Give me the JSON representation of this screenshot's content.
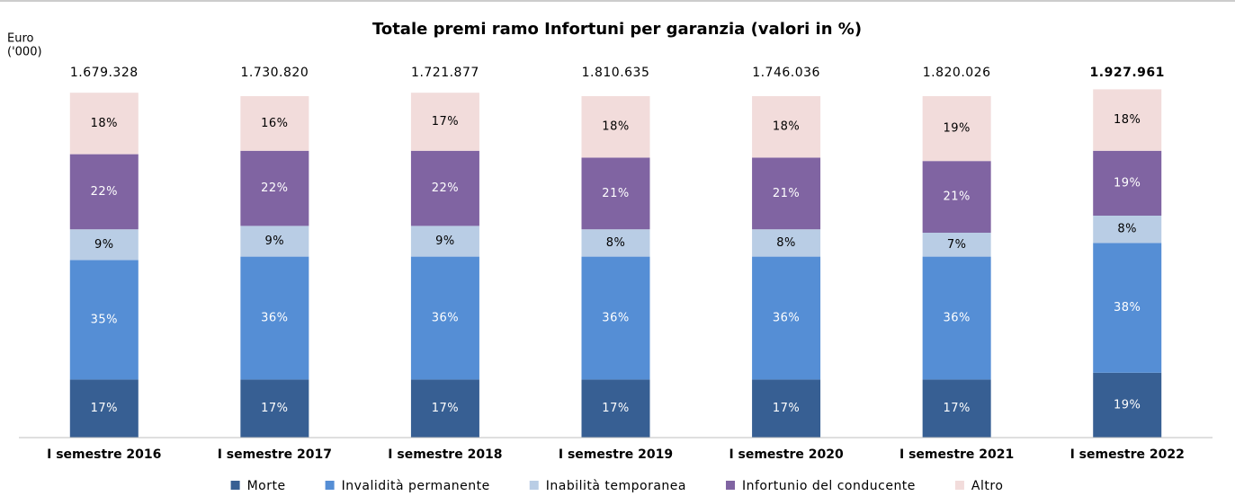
{
  "chart_data": {
    "type": "stacked_bar",
    "title": "Totale premi ramo Infortuni per garanzia (valori in %)",
    "unit_label": [
      "Euro",
      "('000)"
    ],
    "categories": [
      "I semestre 2016",
      "I semestre 2017",
      "I semestre 2018",
      "I semestre 2019",
      "I semestre 2020",
      "I semestre 2021",
      "I semestre 2022"
    ],
    "totals": {
      "values": [
        1679328,
        1730820,
        1721877,
        1810635,
        1746036,
        1820026,
        1927961
      ],
      "value_labels": [
        "1.679.328",
        "1.730.820",
        "1.721.877",
        "1.810.635",
        "1.746.036",
        "1.820.026",
        "1.927.961"
      ]
    },
    "series": [
      {
        "name": "Morte",
        "color": "#375f93",
        "values": [
          17,
          17,
          17,
          17,
          17,
          17,
          19
        ],
        "value_labels": [
          "17%",
          "17%",
          "17%",
          "17%",
          "17%",
          "17%",
          "19%"
        ]
      },
      {
        "name": "Invalidità permanente",
        "color": "#558ed5",
        "values": [
          35,
          36,
          36,
          36,
          36,
          36,
          38
        ],
        "value_labels": [
          "35%",
          "36%",
          "36%",
          "36%",
          "36%",
          "36%",
          "38%"
        ]
      },
      {
        "name": "Inabilità temporanea",
        "color": "#b9cde5",
        "values": [
          9,
          9,
          9,
          8,
          8,
          7,
          8
        ],
        "value_labels": [
          "9%",
          "9%",
          "9%",
          "8%",
          "8%",
          "7%",
          "8%"
        ]
      },
      {
        "name": "Infortunio del conducente",
        "color": "#8064a2",
        "values": [
          22,
          22,
          22,
          21,
          21,
          21,
          19
        ],
        "value_labels": [
          "22%",
          "22%",
          "22%",
          "21%",
          "21%",
          "21%",
          "19%"
        ]
      },
      {
        "name": "Altro",
        "color": "#f2dcdb",
        "values": [
          18,
          16,
          17,
          18,
          18,
          19,
          18
        ],
        "value_labels": [
          "18%",
          "16%",
          "17%",
          "18%",
          "18%",
          "19%",
          "18%"
        ]
      }
    ],
    "ylim": [
      0,
      100
    ],
    "legend": "bottom"
  }
}
